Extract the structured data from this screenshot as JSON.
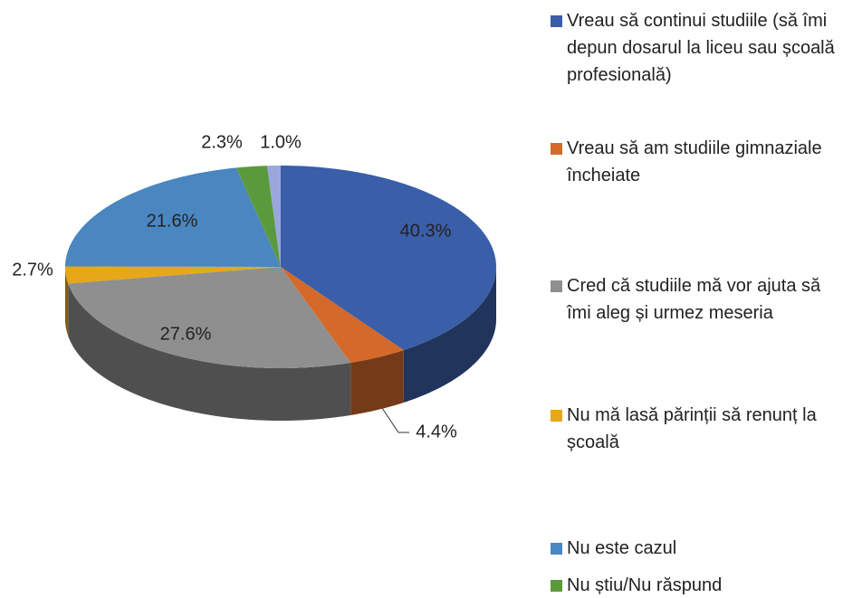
{
  "chart_data": {
    "type": "pie",
    "categories": [
      "Vreau să continui studiile (să îmi depun dosarul la liceu sau școală profesională)",
      "Vreau să am studiile gimnaziale încheiate",
      "Cred că studiile mă vor ajuta să îmi aleg și urmez meseria",
      "Nu mă lasă părinții să renunț la școală",
      "Nu este cazul",
      "Nu știu/Nu răspund",
      null
    ],
    "values": [
      40.3,
      4.4,
      27.6,
      2.7,
      21.6,
      2.3,
      1.0
    ],
    "value_labels": [
      "40.3%",
      "4.4%",
      "27.6%",
      "2.7%",
      "21.6%",
      "2.3%",
      "1.0%"
    ],
    "colors": [
      "#3a5ea8",
      "#d4692a",
      "#8f8f8f",
      "#e6a817",
      "#4a86c0",
      "#5b9a3c",
      "#9aa7dc"
    ],
    "legend": "right"
  }
}
